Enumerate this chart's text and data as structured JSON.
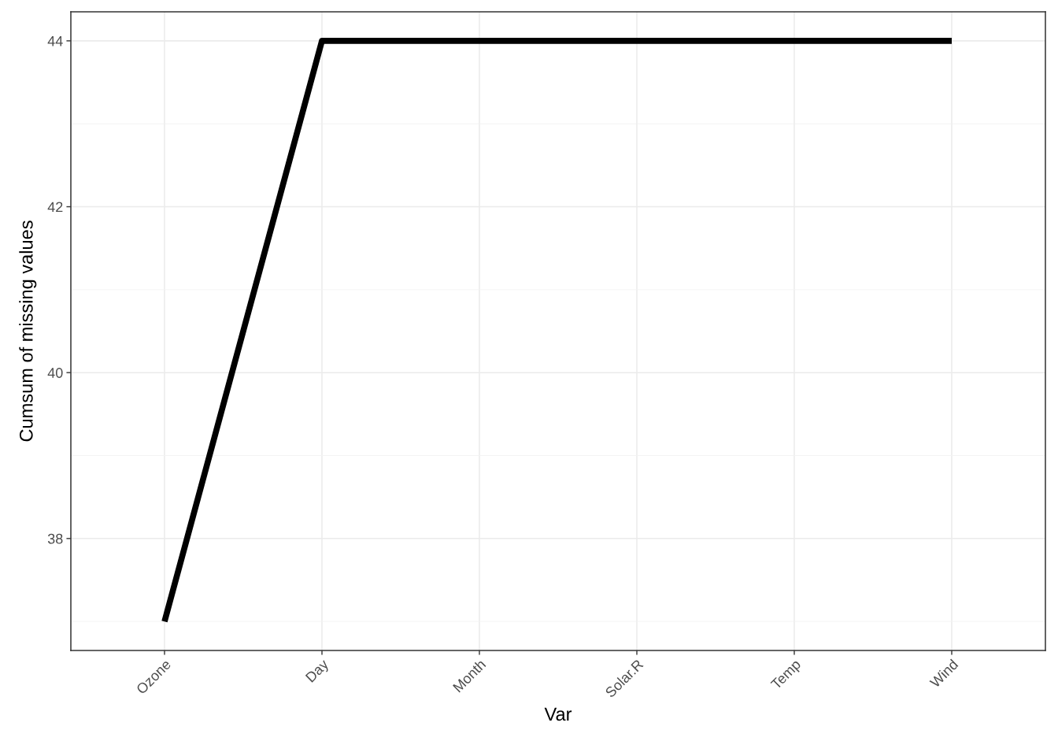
{
  "chart_data": {
    "type": "line",
    "xlabel": "Var",
    "ylabel": "Cumsum of missing values",
    "categories": [
      "Ozone",
      "Day",
      "Month",
      "Solar.R",
      "Temp",
      "Wind"
    ],
    "series": [
      {
        "color": "#000000",
        "values": [
          37,
          44,
          44,
          44,
          44,
          44
        ]
      }
    ],
    "ylim": [
      36.65,
      44.35
    ],
    "yticks": [
      {
        "value": 37,
        "label": null
      },
      38,
      {
        "value": 39,
        "label": null
      },
      40,
      {
        "value": 41,
        "label": null
      },
      42,
      {
        "value": 43,
        "label": null
      },
      44
    ],
    "grid": true
  }
}
